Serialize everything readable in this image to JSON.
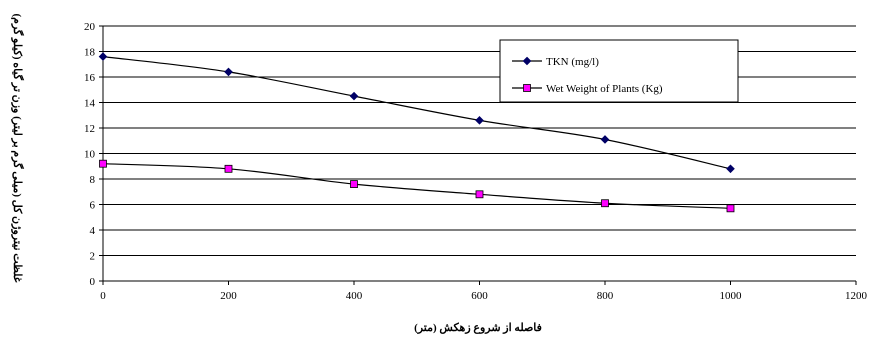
{
  "chart_data": {
    "type": "line",
    "title": "",
    "xlabel": "فاصله از شروع زهکش (متر)",
    "ylabel": "غلظت نیتروژن کل (میلی گرم بر لیتر) وزن تر گیاه (کیلو گرم)",
    "xlim": [
      0,
      1200
    ],
    "ylim": [
      0,
      20
    ],
    "x_ticks": [
      0,
      200,
      400,
      600,
      800,
      1000,
      1200
    ],
    "y_ticks": [
      0,
      2,
      4,
      6,
      8,
      10,
      12,
      14,
      16,
      18,
      20
    ],
    "grid": "horizontal",
    "legend_position": "top-right",
    "x": [
      0,
      200,
      400,
      600,
      800,
      1000
    ],
    "series": [
      {
        "name": "TKN (mg/l)",
        "marker": "diamond",
        "color": "#000066",
        "values": [
          17.6,
          16.4,
          14.5,
          12.6,
          11.1,
          8.8
        ]
      },
      {
        "name": "Wet Weight of Plants (Kg)",
        "marker": "square",
        "color": "#ff00ff",
        "values": [
          9.2,
          8.8,
          7.6,
          6.8,
          6.1,
          5.7
        ]
      }
    ]
  }
}
